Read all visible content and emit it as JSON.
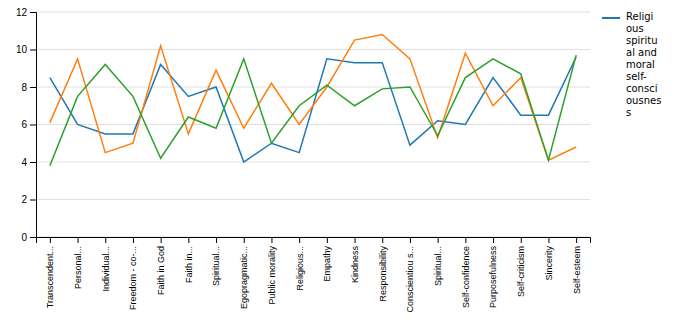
{
  "chart_data": {
    "type": "line",
    "categories": [
      "Transcendent...",
      "Personal...",
      "Individual...",
      "Freedom - co-...",
      "Faith in God",
      "Faith in...",
      "Spiritual...",
      "Egopragmatic...",
      "Public morality",
      "Religious...",
      "Empathy",
      "Kindness",
      "Responsibility",
      "Conscientiou s...",
      "Spiritual...",
      "Self-confidence",
      "Purposefulness",
      "Self-criticism",
      "Sincerity",
      "Self-esteem"
    ],
    "series": [
      {
        "name": "Religi\nous\nspiritu\nal and\nmoral\nself-\nconsci\nousnes\ns",
        "values": [
          8.5,
          6.0,
          5.5,
          5.5,
          9.2,
          7.5,
          8.0,
          4.0,
          5.0,
          4.5,
          9.5,
          9.3,
          9.3,
          4.9,
          6.2,
          6.0,
          8.5,
          6.5,
          6.5,
          9.6
        ]
      },
      {
        "values": [
          6.1,
          9.5,
          4.5,
          5.0,
          10.2,
          5.5,
          8.9,
          5.8,
          8.2,
          6.0,
          8.0,
          10.5,
          10.8,
          9.5,
          5.3,
          9.8,
          7.0,
          8.5,
          4.1,
          4.8
        ]
      },
      {
        "values": [
          3.8,
          7.5,
          9.2,
          7.5,
          4.2,
          6.4,
          5.8,
          9.5,
          5.0,
          7.0,
          8.1,
          7.0,
          7.9,
          8.0,
          5.4,
          8.5,
          9.5,
          8.7,
          4.1,
          9.7
        ]
      }
    ],
    "ylim": [
      0,
      12
    ],
    "yticks": [
      0,
      2,
      4,
      6,
      8,
      10,
      12
    ],
    "grid": true,
    "legend": "right"
  }
}
